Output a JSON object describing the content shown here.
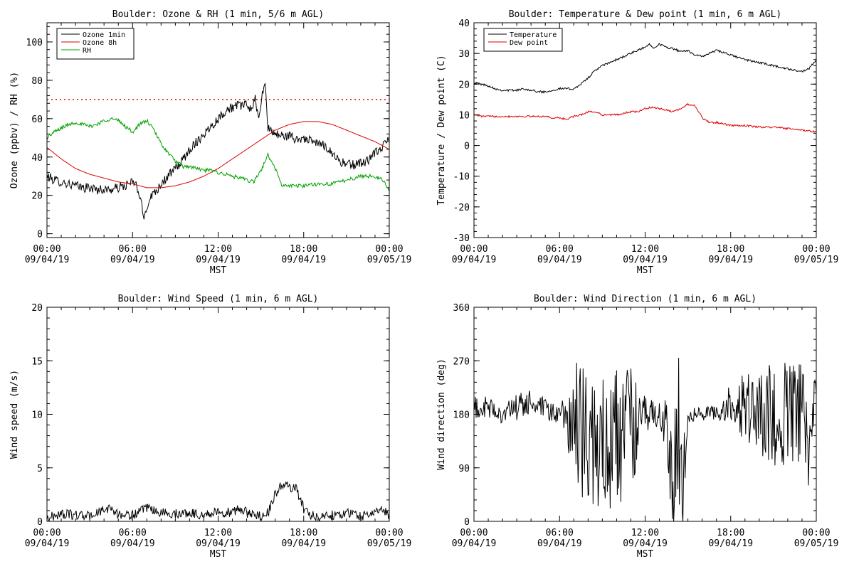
{
  "xaxis": {
    "tick_labels": [
      {
        "t": 0,
        "time": "00:00",
        "date": "09/04/19"
      },
      {
        "t": 6,
        "time": "06:00",
        "date": "09/04/19"
      },
      {
        "t": 12,
        "time": "12:00",
        "date": "09/04/19"
      },
      {
        "t": 18,
        "time": "18:00",
        "date": "09/04/19"
      },
      {
        "t": 24,
        "time": "00:00",
        "date": "09/05/19"
      }
    ],
    "xlabel": "MST"
  },
  "chart_data": [
    {
      "type": "line",
      "title": "Boulder: Ozone & RH (1 min, 5/6 m AGL)",
      "xlabel": "MST",
      "ylabel": "Ozone (ppbv) / RH (%)",
      "x_unit": "hours since 09/04/19 00:00 MST",
      "xlim": [
        0,
        24
      ],
      "ylim": [
        -2,
        110
      ],
      "yticks": [
        0,
        20,
        40,
        60,
        80,
        100
      ],
      "grid": false,
      "legend": "top-left",
      "reference_line": {
        "y": 70,
        "style": "dotted",
        "color": "#e00000"
      },
      "series": [
        {
          "name": "Ozone 1min",
          "color": "#000000",
          "noise": 2.5,
          "x": [
            0,
            0.5,
            1,
            1.5,
            2,
            2.5,
            3,
            3.5,
            4,
            4.5,
            5,
            5.5,
            6,
            6.3,
            6.6,
            6.8,
            7,
            7.3,
            7.6,
            8,
            8.5,
            9,
            9.5,
            10,
            10.5,
            11,
            11.5,
            12,
            12.5,
            13,
            13.5,
            14,
            14.3,
            14.6,
            14.8,
            15,
            15.1,
            15.3,
            15.5,
            16,
            16.5,
            17,
            17.5,
            18,
            18.5,
            19,
            19.5,
            20,
            20.5,
            21,
            21.5,
            22,
            22.5,
            23,
            23.5,
            24
          ],
          "y": [
            30,
            28,
            27,
            26,
            25,
            24,
            24,
            23,
            23,
            23,
            24,
            25,
            27,
            25,
            16,
            8,
            14,
            20,
            22,
            26,
            30,
            34,
            38,
            44,
            48,
            52,
            56,
            60,
            64,
            66,
            67,
            67,
            65,
            70,
            60,
            68,
            72,
            78,
            55,
            52,
            51,
            51,
            49,
            50,
            48,
            47,
            46,
            42,
            38,
            36,
            36,
            37,
            38,
            42,
            45,
            50
          ]
        },
        {
          "name": "Ozone 8h",
          "color": "#e00000",
          "noise": 0,
          "x": [
            0,
            1,
            2,
            3,
            4,
            5,
            6,
            7,
            8,
            9,
            10,
            11,
            12,
            13,
            14,
            15,
            16,
            17,
            18,
            19,
            20,
            21,
            22,
            23,
            24
          ],
          "y": [
            45,
            39,
            34,
            31,
            29,
            27,
            26,
            24,
            24,
            25,
            27,
            30,
            34,
            39,
            44,
            49,
            54,
            57,
            58.5,
            58.5,
            57,
            54,
            51,
            48,
            44
          ]
        },
        {
          "name": "RH",
          "color": "#00a000",
          "noise": 1.0,
          "x": [
            0,
            0.5,
            1,
            1.5,
            2,
            2.5,
            3,
            3.5,
            4,
            4.5,
            5,
            5.5,
            6,
            6.5,
            7,
            7.5,
            8,
            8.5,
            9,
            9.5,
            10,
            10.5,
            11,
            11.5,
            12,
            13,
            14,
            14.5,
            15,
            15.5,
            16,
            16.3,
            16.5,
            17,
            18,
            19,
            20,
            21,
            22,
            23,
            23.5,
            24
          ],
          "y": [
            50,
            53,
            55,
            57,
            58,
            57,
            56,
            57,
            59,
            60,
            59,
            56,
            53,
            57,
            59,
            54,
            47,
            42,
            38,
            35,
            35,
            34,
            33,
            33,
            32,
            30,
            28,
            27,
            33,
            41,
            34,
            28,
            25,
            25,
            25,
            26,
            26,
            28,
            30,
            30,
            28,
            23
          ]
        }
      ]
    },
    {
      "type": "line",
      "title": "Boulder: Temperature & Dew point (1 min, 6 m AGL)",
      "xlabel": "MST",
      "ylabel": "Temperature / Dew point (C)",
      "x_unit": "hours since 09/04/19 00:00 MST",
      "xlim": [
        0,
        24
      ],
      "ylim": [
        -30,
        40
      ],
      "yticks": [
        -30,
        -20,
        -10,
        0,
        10,
        20,
        30,
        40
      ],
      "grid": false,
      "legend": "top-left",
      "series": [
        {
          "name": "Temperature",
          "color": "#000000",
          "noise": 0.35,
          "x": [
            0,
            0.5,
            1,
            1.5,
            2,
            2.5,
            3,
            3.5,
            4,
            4.5,
            5,
            5.5,
            6,
            6.5,
            7,
            7.5,
            8,
            8.5,
            9,
            9.5,
            10,
            10.5,
            11,
            11.5,
            12,
            12.3,
            12.6,
            13,
            13.5,
            14,
            14.5,
            15,
            15.5,
            16,
            16.5,
            17,
            18,
            19,
            20,
            21,
            22,
            23,
            23.5,
            24
          ],
          "y": [
            20.5,
            20,
            19.5,
            18.5,
            18,
            18,
            18,
            18.5,
            18,
            17.5,
            17.5,
            18,
            18.5,
            18.5,
            18.5,
            20,
            22,
            24.5,
            26,
            27,
            28,
            29,
            30,
            31,
            32,
            33,
            32,
            33,
            32,
            31.5,
            30.5,
            31,
            29.5,
            29,
            30,
            31,
            29.5,
            28,
            27,
            26,
            25,
            24,
            25,
            28
          ]
        },
        {
          "name": "Dew point",
          "color": "#e00000",
          "noise": 0.3,
          "x": [
            0,
            0.5,
            1,
            1.5,
            2,
            2.5,
            3,
            3.5,
            4,
            4.5,
            5,
            5.5,
            6,
            6.5,
            7,
            7.5,
            8,
            8.5,
            9,
            9.5,
            10,
            10.5,
            11,
            11.5,
            12,
            12.5,
            13,
            13.5,
            14,
            14.5,
            15,
            15.5,
            16,
            16.5,
            17,
            17.5,
            18,
            19,
            20,
            21,
            22,
            23,
            24
          ],
          "y": [
            10,
            9.5,
            9.5,
            9.5,
            9.5,
            9.5,
            9.5,
            9.5,
            9.5,
            9.5,
            9.5,
            9,
            9,
            8.5,
            9.5,
            10,
            11,
            11,
            10,
            10,
            10,
            10.5,
            11,
            11,
            12,
            12.5,
            12,
            11.5,
            11,
            12,
            13.5,
            13,
            9,
            7.5,
            7.5,
            7,
            6.5,
            6.5,
            6,
            6,
            5.5,
            5,
            4.5
          ]
        }
      ]
    },
    {
      "type": "line",
      "title": "Boulder: Wind Speed (1 min, 6 m AGL)",
      "xlabel": "MST",
      "ylabel": "Wind speed (m/s)",
      "x_unit": "hours since 09/04/19 00:00 MST",
      "xlim": [
        0,
        24
      ],
      "ylim": [
        0,
        20
      ],
      "yticks": [
        0,
        5,
        10,
        15,
        20
      ],
      "grid": false,
      "series": [
        {
          "color": "#000000",
          "noise": 0.45,
          "x": [
            0,
            1,
            2,
            3,
            3.5,
            4,
            4.5,
            5,
            6,
            6.5,
            7,
            8,
            9,
            10,
            11,
            12,
            13,
            13.5,
            14,
            15,
            15.5,
            16,
            16.5,
            17,
            17.5,
            18,
            18.5,
            19,
            20,
            21,
            22,
            23,
            23.5,
            24
          ],
          "y": [
            0.3,
            0.7,
            0.6,
            0.5,
            0.8,
            1.0,
            1.3,
            0.6,
            0.6,
            0.9,
            1.2,
            0.8,
            0.7,
            0.8,
            0.6,
            0.9,
            0.8,
            1.2,
            0.8,
            0.5,
            0.8,
            2.5,
            3.5,
            3.2,
            3.0,
            1.2,
            0.6,
            0.4,
            0.6,
            0.8,
            0.5,
            0.8,
            1.1,
            0.6
          ]
        }
      ]
    },
    {
      "type": "line",
      "title": "Boulder: Wind Direction (1 min, 6 m AGL)",
      "xlabel": "MST",
      "ylabel": "Wind direction (deg)",
      "x_unit": "hours since 09/04/19 00:00 MST",
      "xlim": [
        0,
        24
      ],
      "ylim": [
        0,
        360
      ],
      "yticks": [
        0,
        90,
        180,
        270,
        360
      ],
      "grid": false,
      "series": [
        {
          "color": "#000000",
          "x": [
            0,
            1,
            2,
            3,
            4,
            5,
            6,
            6.5,
            7,
            8,
            9,
            10,
            11,
            12,
            13,
            13.5,
            14,
            14.3,
            14.6,
            15,
            16,
            17,
            17.5,
            18,
            19,
            20,
            21,
            22,
            23,
            23.5,
            24
          ],
          "y": [
            190,
            190,
            180,
            190,
            200,
            185,
            180,
            180,
            150,
            140,
            120,
            140,
            150,
            180,
            180,
            160,
            60,
            150,
            60,
            180,
            180,
            185,
            185,
            200,
            190,
            185,
            180,
            185,
            180,
            140,
            220
          ],
          "noise": [
            20,
            20,
            15,
            25,
            25,
            20,
            20,
            30,
            120,
            120,
            120,
            120,
            110,
            30,
            20,
            50,
            100,
            150,
            100,
            15,
            10,
            15,
            20,
            40,
            60,
            70,
            90,
            90,
            90,
            100,
            20
          ]
        }
      ]
    }
  ]
}
